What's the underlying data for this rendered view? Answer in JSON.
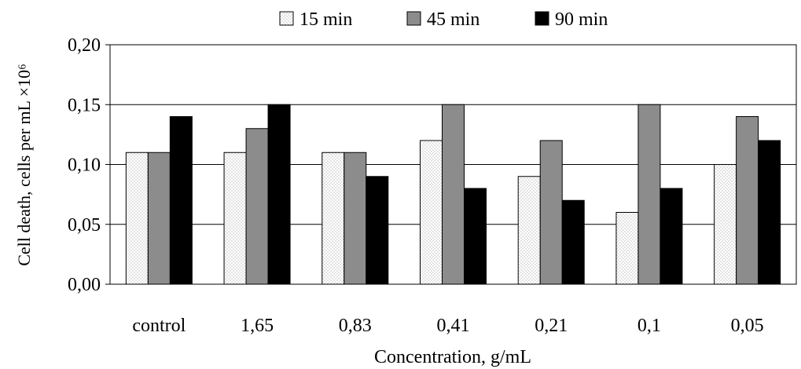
{
  "chart_data": {
    "type": "bar",
    "xlabel": "Concentration, g/mL",
    "ylabel": "Cell death, cells per mL ×10⁶",
    "ylim": [
      0,
      0.2
    ],
    "yticks": [
      0.0,
      0.05,
      0.1,
      0.15,
      0.2
    ],
    "ytick_labels": [
      "0,00",
      "0,05",
      "0,10",
      "0,15",
      "0,20"
    ],
    "categories": [
      "control",
      "1,65",
      "0,83",
      "0,41",
      "0,21",
      "0,1",
      "0,05"
    ],
    "series": [
      {
        "name": "15 min",
        "fill": "dotted",
        "color": "#ffffff",
        "values": [
          0.11,
          0.11,
          0.11,
          0.12,
          0.09,
          0.06,
          0.1
        ]
      },
      {
        "name": "45 min",
        "fill": "solid",
        "color": "#8c8c8c",
        "values": [
          0.11,
          0.13,
          0.11,
          0.15,
          0.12,
          0.15,
          0.14
        ]
      },
      {
        "name": "90 min",
        "fill": "solid",
        "color": "#000000",
        "values": [
          0.14,
          0.15,
          0.09,
          0.08,
          0.07,
          0.08,
          0.12
        ]
      }
    ],
    "grid": "horizontal",
    "legend": "top"
  }
}
